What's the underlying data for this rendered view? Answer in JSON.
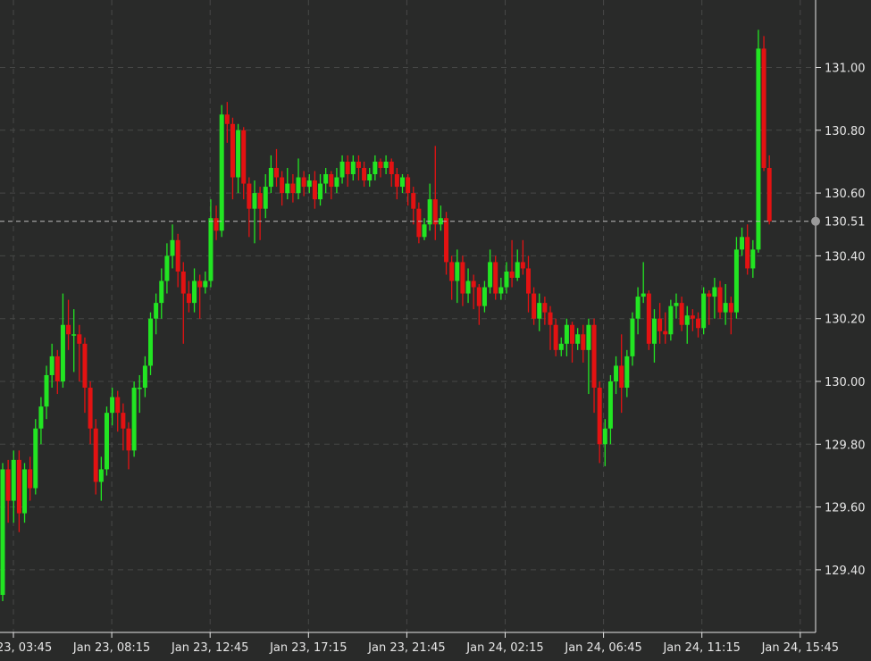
{
  "chart_data": {
    "type": "candlestick",
    "title": "",
    "xlabel": "",
    "ylabel": "",
    "x_start": "Jan 23, 03:15",
    "interval_minutes": 15,
    "ylim": [
      129.22,
      131.2
    ],
    "y_ticks": [
      "129.40",
      "129.60",
      "129.80",
      "130.00",
      "130.20",
      "130.40",
      "130.60",
      "130.80",
      "131.00"
    ],
    "x_ticks": [
      "Jan 23, 03:45",
      "Jan 23, 08:15",
      "Jan 23, 12:45",
      "Jan 23, 17:15",
      "Jan 23, 21:45",
      "Jan 24, 02:15",
      "Jan 24, 06:45",
      "Jan 24, 11:15",
      "Jan 24, 15:45"
    ],
    "last_price": 130.51,
    "last_price_label": "130.51",
    "grid": true,
    "colors": {
      "background": "#292a29",
      "up": "#22e522",
      "down": "#e31212",
      "grid": "#474847",
      "axis": "#e6e6e6",
      "price_line": "#bdbdbd"
    },
    "candles": [
      [
        129.32,
        129.74,
        129.3,
        129.72
      ],
      [
        129.72,
        129.75,
        129.55,
        129.62
      ],
      [
        129.62,
        129.78,
        129.55,
        129.75
      ],
      [
        129.75,
        129.78,
        129.52,
        129.58
      ],
      [
        129.58,
        129.74,
        129.55,
        129.72
      ],
      [
        129.72,
        129.76,
        129.62,
        129.66
      ],
      [
        129.66,
        129.88,
        129.64,
        129.85
      ],
      [
        129.85,
        129.95,
        129.8,
        129.92
      ],
      [
        129.92,
        130.05,
        129.88,
        130.02
      ],
      [
        130.02,
        130.12,
        129.98,
        130.08
      ],
      [
        130.08,
        130.1,
        129.96,
        130.0
      ],
      [
        130.0,
        130.28,
        129.98,
        130.18
      ],
      [
        130.18,
        130.26,
        130.1,
        130.15
      ],
      [
        130.15,
        130.23,
        130.03,
        130.15
      ],
      [
        130.15,
        130.18,
        130.0,
        130.12
      ],
      [
        130.12,
        130.14,
        129.9,
        129.98
      ],
      [
        129.98,
        130.0,
        129.8,
        129.85
      ],
      [
        129.85,
        129.88,
        129.64,
        129.68
      ],
      [
        129.68,
        129.76,
        129.62,
        129.72
      ],
      [
        129.72,
        129.92,
        129.7,
        129.9
      ],
      [
        129.9,
        129.98,
        129.86,
        129.95
      ],
      [
        129.95,
        129.97,
        129.84,
        129.9
      ],
      [
        129.9,
        129.93,
        129.78,
        129.85
      ],
      [
        129.85,
        129.87,
        129.72,
        129.78
      ],
      [
        129.78,
        130.0,
        129.76,
        129.98
      ],
      [
        129.98,
        130.02,
        129.9,
        129.98
      ],
      [
        129.98,
        130.08,
        129.95,
        130.05
      ],
      [
        130.05,
        130.22,
        130.02,
        130.2
      ],
      [
        130.2,
        130.28,
        130.15,
        130.25
      ],
      [
        130.25,
        130.36,
        130.2,
        130.32
      ],
      [
        130.32,
        130.44,
        130.28,
        130.4
      ],
      [
        130.4,
        130.5,
        130.36,
        130.45
      ],
      [
        130.45,
        130.47,
        130.3,
        130.35
      ],
      [
        130.35,
        130.38,
        130.12,
        130.28
      ],
      [
        130.28,
        130.32,
        130.22,
        130.25
      ],
      [
        130.25,
        130.36,
        130.22,
        130.32
      ],
      [
        130.32,
        130.34,
        130.2,
        130.3
      ],
      [
        130.3,
        130.35,
        130.28,
        130.32
      ],
      [
        130.32,
        130.58,
        130.3,
        130.52
      ],
      [
        130.52,
        130.56,
        130.45,
        130.48
      ],
      [
        130.48,
        130.88,
        130.46,
        130.85
      ],
      [
        130.85,
        130.89,
        130.76,
        130.82
      ],
      [
        130.82,
        130.84,
        130.58,
        130.65
      ],
      [
        130.65,
        130.82,
        130.6,
        130.8
      ],
      [
        130.8,
        130.81,
        130.58,
        130.63
      ],
      [
        130.63,
        130.65,
        130.46,
        130.55
      ],
      [
        130.55,
        130.64,
        130.44,
        130.6
      ],
      [
        130.6,
        130.62,
        130.45,
        130.55
      ],
      [
        130.55,
        130.66,
        130.52,
        130.62
      ],
      [
        130.62,
        130.72,
        130.6,
        130.68
      ],
      [
        130.68,
        130.74,
        130.62,
        130.65
      ],
      [
        130.65,
        130.67,
        130.56,
        130.6
      ],
      [
        130.6,
        130.68,
        130.58,
        130.63
      ],
      [
        130.63,
        130.66,
        130.57,
        130.6
      ],
      [
        130.6,
        130.71,
        130.58,
        130.65
      ],
      [
        130.65,
        130.67,
        130.59,
        130.62
      ],
      [
        130.62,
        130.66,
        130.6,
        130.64
      ],
      [
        130.64,
        130.67,
        130.55,
        130.58
      ],
      [
        130.58,
        130.66,
        130.56,
        130.63
      ],
      [
        130.63,
        130.68,
        130.6,
        130.66
      ],
      [
        130.66,
        130.67,
        130.58,
        130.62
      ],
      [
        130.62,
        130.68,
        130.6,
        130.65
      ],
      [
        130.65,
        130.72,
        130.63,
        130.7
      ],
      [
        130.7,
        130.72,
        130.62,
        130.66
      ],
      [
        130.66,
        130.72,
        130.64,
        130.7
      ],
      [
        130.7,
        130.72,
        130.64,
        130.68
      ],
      [
        130.68,
        130.7,
        130.62,
        130.64
      ],
      [
        130.64,
        130.68,
        130.62,
        130.66
      ],
      [
        130.66,
        130.72,
        130.64,
        130.7
      ],
      [
        130.7,
        130.71,
        130.65,
        130.68
      ],
      [
        130.68,
        130.72,
        130.66,
        130.7
      ],
      [
        130.7,
        130.71,
        130.62,
        130.66
      ],
      [
        130.66,
        130.68,
        130.58,
        130.62
      ],
      [
        130.62,
        130.66,
        130.6,
        130.65
      ],
      [
        130.65,
        130.66,
        130.56,
        130.6
      ],
      [
        130.6,
        130.62,
        130.5,
        130.55
      ],
      [
        130.55,
        130.57,
        130.44,
        130.46
      ],
      [
        130.46,
        130.52,
        130.45,
        130.5
      ],
      [
        130.5,
        130.63,
        130.48,
        130.58
      ],
      [
        130.58,
        130.75,
        130.45,
        130.5
      ],
      [
        130.5,
        130.56,
        130.48,
        130.52
      ],
      [
        130.52,
        130.54,
        130.34,
        130.38
      ],
      [
        130.38,
        130.4,
        130.26,
        130.32
      ],
      [
        130.32,
        130.42,
        130.25,
        130.38
      ],
      [
        130.38,
        130.4,
        130.24,
        130.28
      ],
      [
        130.28,
        130.36,
        130.25,
        130.32
      ],
      [
        130.32,
        130.34,
        130.23,
        130.3
      ],
      [
        130.3,
        130.31,
        130.18,
        130.24
      ],
      [
        130.24,
        130.32,
        130.22,
        130.3
      ],
      [
        130.3,
        130.42,
        130.28,
        130.38
      ],
      [
        130.38,
        130.4,
        130.26,
        130.28
      ],
      [
        130.28,
        130.33,
        130.26,
        130.3
      ],
      [
        130.3,
        130.38,
        130.28,
        130.35
      ],
      [
        130.35,
        130.45,
        130.3,
        130.33
      ],
      [
        130.33,
        130.42,
        130.32,
        130.38
      ],
      [
        130.38,
        130.45,
        130.34,
        130.36
      ],
      [
        130.36,
        130.4,
        130.22,
        130.28
      ],
      [
        130.28,
        130.3,
        130.18,
        130.2
      ],
      [
        130.2,
        130.28,
        130.16,
        130.25
      ],
      [
        130.25,
        130.27,
        130.18,
        130.22
      ],
      [
        130.22,
        130.24,
        130.1,
        130.18
      ],
      [
        130.18,
        130.2,
        130.08,
        130.1
      ],
      [
        130.1,
        130.14,
        130.08,
        130.12
      ],
      [
        130.12,
        130.2,
        130.08,
        130.18
      ],
      [
        130.18,
        130.19,
        130.06,
        130.12
      ],
      [
        130.12,
        130.17,
        130.1,
        130.15
      ],
      [
        130.15,
        130.18,
        130.06,
        130.1
      ],
      [
        130.1,
        130.2,
        129.96,
        130.18
      ],
      [
        130.18,
        130.2,
        129.9,
        129.98
      ],
      [
        129.98,
        130.0,
        129.74,
        129.8
      ],
      [
        129.8,
        129.88,
        129.73,
        129.85
      ],
      [
        129.85,
        130.02,
        129.8,
        130.0
      ],
      [
        130.0,
        130.08,
        129.96,
        130.05
      ],
      [
        130.05,
        130.15,
        129.9,
        129.98
      ],
      [
        129.98,
        130.1,
        129.95,
        130.08
      ],
      [
        130.08,
        130.22,
        130.05,
        130.2
      ],
      [
        130.2,
        130.3,
        130.15,
        130.27
      ],
      [
        130.27,
        130.38,
        130.25,
        130.28
      ],
      [
        130.28,
        130.29,
        130.1,
        130.12
      ],
      [
        130.12,
        130.23,
        130.06,
        130.2
      ],
      [
        130.2,
        130.25,
        130.12,
        130.16
      ],
      [
        130.16,
        130.22,
        130.12,
        130.15
      ],
      [
        130.15,
        130.26,
        130.13,
        130.24
      ],
      [
        130.24,
        130.28,
        130.2,
        130.25
      ],
      [
        130.25,
        130.27,
        130.16,
        130.18
      ],
      [
        130.18,
        130.24,
        130.12,
        130.21
      ],
      [
        130.21,
        130.23,
        130.16,
        130.2
      ],
      [
        130.2,
        130.22,
        130.14,
        130.17
      ],
      [
        130.17,
        130.3,
        130.15,
        130.28
      ],
      [
        130.28,
        130.29,
        130.18,
        130.27
      ],
      [
        130.27,
        130.33,
        130.2,
        130.3
      ],
      [
        130.3,
        130.32,
        130.2,
        130.22
      ],
      [
        130.22,
        130.31,
        130.18,
        130.25
      ],
      [
        130.25,
        130.27,
        130.15,
        130.22
      ],
      [
        130.22,
        130.46,
        130.2,
        130.42
      ],
      [
        130.42,
        130.49,
        130.4,
        130.46
      ],
      [
        130.46,
        130.5,
        130.34,
        130.36
      ],
      [
        130.36,
        130.45,
        130.33,
        130.42
      ],
      [
        130.42,
        131.12,
        130.41,
        131.06
      ],
      [
        131.06,
        131.1,
        130.67,
        130.68
      ],
      [
        130.68,
        130.72,
        130.5,
        130.51
      ]
    ]
  }
}
